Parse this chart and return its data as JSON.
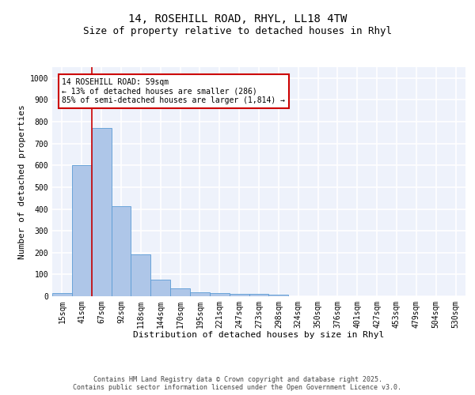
{
  "title_line1": "14, ROSEHILL ROAD, RHYL, LL18 4TW",
  "title_line2": "Size of property relative to detached houses in Rhyl",
  "xlabel": "Distribution of detached houses by size in Rhyl",
  "ylabel": "Number of detached properties",
  "bar_labels": [
    "15sqm",
    "41sqm",
    "67sqm",
    "92sqm",
    "118sqm",
    "144sqm",
    "170sqm",
    "195sqm",
    "221sqm",
    "247sqm",
    "273sqm",
    "298sqm",
    "324sqm",
    "350sqm",
    "376sqm",
    "401sqm",
    "427sqm",
    "453sqm",
    "479sqm",
    "504sqm",
    "530sqm"
  ],
  "bar_values": [
    13,
    601,
    770,
    413,
    193,
    75,
    37,
    18,
    15,
    12,
    12,
    7,
    0,
    0,
    0,
    0,
    0,
    0,
    0,
    0,
    0
  ],
  "bar_color": "#aec6e8",
  "bar_edge_color": "#5b9bd5",
  "background_color": "#eef2fb",
  "grid_color": "#ffffff",
  "vline_color": "#cc0000",
  "annotation_box_text": "14 ROSEHILL ROAD: 59sqm\n← 13% of detached houses are smaller (286)\n85% of semi-detached houses are larger (1,814) →",
  "ylim": [
    0,
    1050
  ],
  "yticks": [
    0,
    100,
    200,
    300,
    400,
    500,
    600,
    700,
    800,
    900,
    1000
  ],
  "footer_text": "Contains HM Land Registry data © Crown copyright and database right 2025.\nContains public sector information licensed under the Open Government Licence v3.0.",
  "title_fontsize": 10,
  "subtitle_fontsize": 9,
  "label_fontsize": 8,
  "tick_fontsize": 7,
  "ann_fontsize": 7,
  "footer_fontsize": 6
}
